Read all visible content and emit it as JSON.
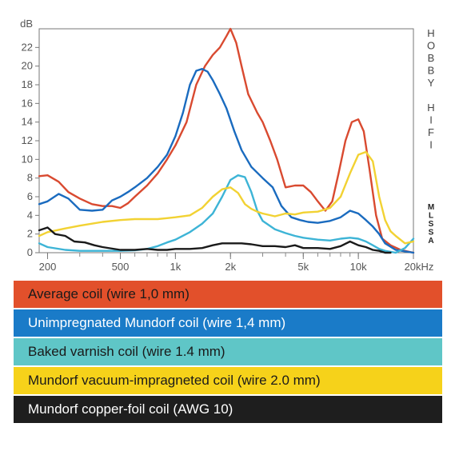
{
  "chart_data": {
    "type": "line",
    "y_unit_label": "dB",
    "x_unit_label": "20kHz",
    "x_scale": "log",
    "xlim": [
      180,
      20000
    ],
    "ylim": [
      0,
      24
    ],
    "y_ticks": [
      0,
      2,
      4,
      6,
      8,
      10,
      12,
      14,
      16,
      18,
      20,
      22
    ],
    "x_ticks": [
      {
        "value": 200,
        "label": "200"
      },
      {
        "value": 500,
        "label": "500"
      },
      {
        "value": 1000,
        "label": "1k"
      },
      {
        "value": 2000,
        "label": "2k"
      },
      {
        "value": 5000,
        "label": "5k"
      },
      {
        "value": 10000,
        "label": "10k"
      },
      {
        "value": 20000,
        "label": "20kHz"
      }
    ],
    "series": [
      {
        "name": "Average coil (wire 1,0 mm)",
        "color": "#d94a30",
        "x": [
          180,
          200,
          230,
          260,
          300,
          350,
          400,
          450,
          500,
          550,
          600,
          700,
          800,
          900,
          1000,
          1150,
          1300,
          1450,
          1600,
          1750,
          1900,
          2000,
          2150,
          2300,
          2500,
          2800,
          3000,
          3300,
          3600,
          4000,
          4500,
          5000,
          5500,
          6000,
          6600,
          7200,
          7800,
          8500,
          9200,
          10000,
          10700,
          11500,
          12500,
          13500,
          15000,
          17000,
          20000
        ],
        "y": [
          8.2,
          8.3,
          7.6,
          6.5,
          5.8,
          5.2,
          5.0,
          5.0,
          4.8,
          5.3,
          6.0,
          7.2,
          8.5,
          10.0,
          11.5,
          14.0,
          18.0,
          20.0,
          21.2,
          22.0,
          23.2,
          24.0,
          22.5,
          20.0,
          17.0,
          15.0,
          14.0,
          12.0,
          10.0,
          7.0,
          7.2,
          7.2,
          6.5,
          5.5,
          4.5,
          5.5,
          8.5,
          12.0,
          14.0,
          14.3,
          13.0,
          9.0,
          4.0,
          1.5,
          0.8,
          0.3,
          0.0
        ]
      },
      {
        "name": "Unimpregnated Mundorf coil (wire 1,4 mm)",
        "color": "#1a6bbf",
        "x": [
          180,
          200,
          230,
          260,
          300,
          350,
          400,
          450,
          500,
          550,
          600,
          700,
          800,
          900,
          1000,
          1100,
          1200,
          1300,
          1400,
          1500,
          1600,
          1750,
          1900,
          2100,
          2300,
          2600,
          3000,
          3400,
          3800,
          4300,
          4800,
          5300,
          6000,
          7000,
          8000,
          9000,
          10000,
          11000,
          12000,
          13000,
          14000,
          16000,
          20000
        ],
        "y": [
          5.2,
          5.5,
          6.3,
          5.8,
          4.6,
          4.5,
          4.6,
          5.6,
          6.0,
          6.5,
          7.0,
          8.0,
          9.2,
          10.5,
          12.5,
          15.0,
          18.0,
          19.5,
          19.7,
          19.4,
          18.5,
          17.0,
          15.5,
          13.0,
          11.0,
          9.2,
          8.0,
          7.0,
          5.0,
          3.8,
          3.5,
          3.3,
          3.2,
          3.4,
          3.8,
          4.5,
          4.2,
          3.5,
          2.8,
          2.0,
          1.0,
          0.3,
          0.0
        ]
      },
      {
        "name": "Baked varnish coil (wire 1.4 mm)",
        "color": "#3db4d6",
        "x": [
          180,
          200,
          250,
          300,
          400,
          500,
          600,
          700,
          800,
          900,
          1000,
          1200,
          1400,
          1600,
          1800,
          2000,
          2200,
          2400,
          2600,
          2800,
          3000,
          3500,
          4000,
          4500,
          5000,
          6000,
          7000,
          8000,
          9000,
          10000,
          11000,
          12000,
          13000,
          14000,
          16000,
          18000,
          20000
        ],
        "y": [
          1.0,
          0.6,
          0.3,
          0.2,
          0.2,
          0.2,
          0.25,
          0.4,
          0.7,
          1.1,
          1.4,
          2.2,
          3.1,
          4.2,
          6.0,
          7.8,
          8.3,
          8.1,
          6.5,
          4.5,
          3.4,
          2.5,
          2.1,
          1.8,
          1.6,
          1.4,
          1.3,
          1.5,
          1.6,
          1.5,
          1.2,
          0.8,
          0.4,
          0.2,
          0.0,
          0.5,
          1.5
        ]
      },
      {
        "name": "Mundorf vacuum-impragneted coil (wire 2.0 mm)",
        "color": "#f2d233",
        "x": [
          180,
          200,
          250,
          300,
          400,
          500,
          600,
          700,
          800,
          900,
          1000,
          1200,
          1400,
          1600,
          1800,
          2000,
          2200,
          2400,
          2600,
          2800,
          3000,
          3500,
          4000,
          4500,
          5000,
          6000,
          7000,
          8000,
          9000,
          10000,
          11000,
          12000,
          13000,
          14000,
          15000,
          16000,
          18000,
          20000
        ],
        "y": [
          1.8,
          2.2,
          2.6,
          2.9,
          3.3,
          3.5,
          3.6,
          3.6,
          3.6,
          3.7,
          3.8,
          4.0,
          4.8,
          6.0,
          6.8,
          7.0,
          6.4,
          5.2,
          4.7,
          4.4,
          4.2,
          3.9,
          4.2,
          4.1,
          4.3,
          4.4,
          4.8,
          6.0,
          8.5,
          10.5,
          10.8,
          9.8,
          6.0,
          3.5,
          2.3,
          1.8,
          1.0,
          1.2
        ]
      },
      {
        "name": "Mundorf copper-foil coil (AWG 10)",
        "color": "#1a1a1a",
        "x": [
          180,
          200,
          220,
          250,
          280,
          320,
          360,
          400,
          500,
          600,
          700,
          800,
          900,
          1000,
          1200,
          1400,
          1600,
          1800,
          2000,
          2300,
          2600,
          3000,
          3500,
          4000,
          4500,
          5000,
          6000,
          7000,
          8000,
          9000,
          10000,
          11000,
          12000,
          13000,
          14000,
          15000
        ],
        "y": [
          2.4,
          2.7,
          2.0,
          1.8,
          1.2,
          1.1,
          0.8,
          0.6,
          0.3,
          0.3,
          0.4,
          0.3,
          0.3,
          0.4,
          0.4,
          0.5,
          0.8,
          1.0,
          1.0,
          1.0,
          0.9,
          0.7,
          0.7,
          0.6,
          0.8,
          0.5,
          0.5,
          0.4,
          0.7,
          1.2,
          0.8,
          0.6,
          0.3,
          0.2,
          0.0,
          0.0
        ]
      }
    ],
    "side_text": [
      "H",
      "O",
      "B",
      "B",
      "Y",
      "",
      "H",
      "I",
      "F",
      "I"
    ],
    "side_text_small": [
      "M",
      "L",
      "S",
      "S",
      "A"
    ]
  },
  "legend": {
    "items": [
      {
        "label": "Average coil (wire 1,0 mm)",
        "bg": "#e2502b",
        "fg": "#1a1a1a"
      },
      {
        "label": "Unimpregnated Mundorf coil (wire 1,4 mm)",
        "bg": "#1a7bc8",
        "fg": "#ffffff"
      },
      {
        "label": "Baked varnish coil (wire 1.4 mm)",
        "bg": "#5fc6c7",
        "fg": "#1a1a1a"
      },
      {
        "label": "Mundorf vacuum-impragneted coil (wire 2.0 mm)",
        "bg": "#f6d21a",
        "fg": "#1a1a1a"
      },
      {
        "label": "Mundorf copper-foil coil (AWG 10)",
        "bg": "#1e1e1e",
        "fg": "#ffffff"
      }
    ]
  }
}
